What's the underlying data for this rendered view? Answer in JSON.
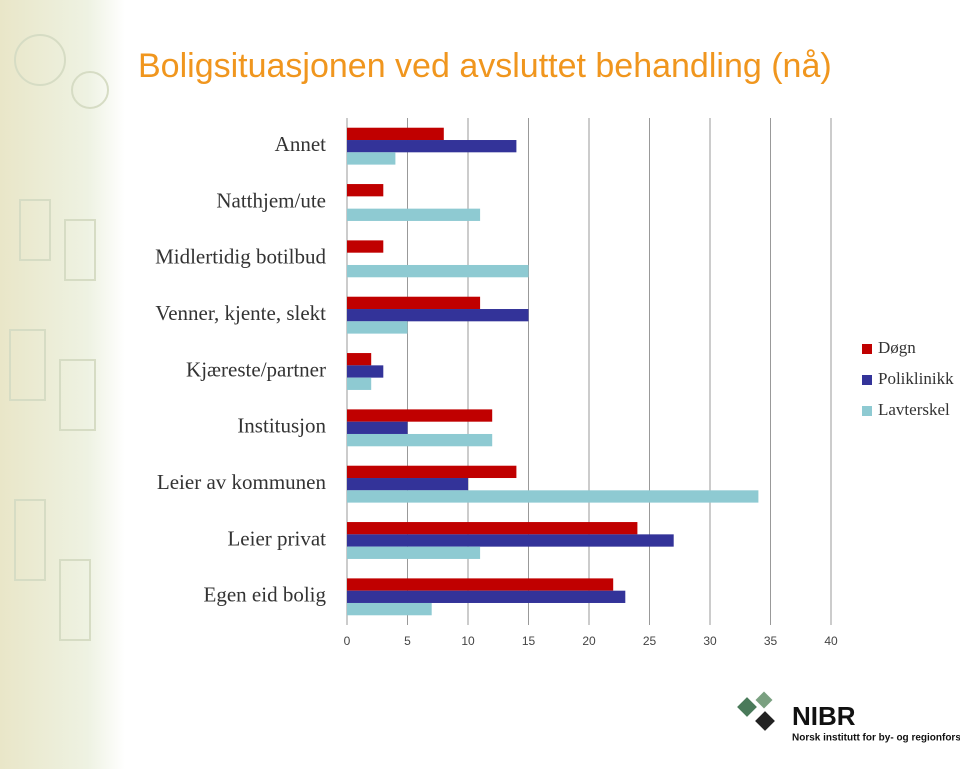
{
  "chart_data": {
    "type": "hbar",
    "title": "Boligsituasjonen ved avsluttet behandling (nå)",
    "categories": [
      "Annet",
      "Natthjem/ute",
      "Midlertidig botilbud",
      "Venner, kjente, slekt",
      "Kjæreste/partner",
      "Institusjon",
      "Leier av kommunen",
      "Leier privat",
      "Egen eid bolig"
    ],
    "series": [
      {
        "name": "Døgn",
        "color": "#c00000",
        "values": [
          8,
          3,
          3,
          11,
          2,
          12,
          14,
          24,
          22
        ]
      },
      {
        "name": "Poliklinikk",
        "color": "#333399",
        "values": [
          14,
          0,
          0,
          15,
          3,
          5,
          10,
          27,
          23
        ]
      },
      {
        "name": "Lavterskel",
        "color": "#8ecad2",
        "values": [
          4,
          11,
          15,
          5,
          2,
          12,
          34,
          11,
          7
        ]
      }
    ],
    "xlim": [
      0,
      40
    ],
    "xticks": [
      0,
      5,
      10,
      15,
      20,
      25,
      30,
      35,
      40
    ],
    "grid": true,
    "legend": "right"
  },
  "logo": {
    "name": "NIBR",
    "subtitle": "Norsk institutt for by- og regionforskning"
  }
}
